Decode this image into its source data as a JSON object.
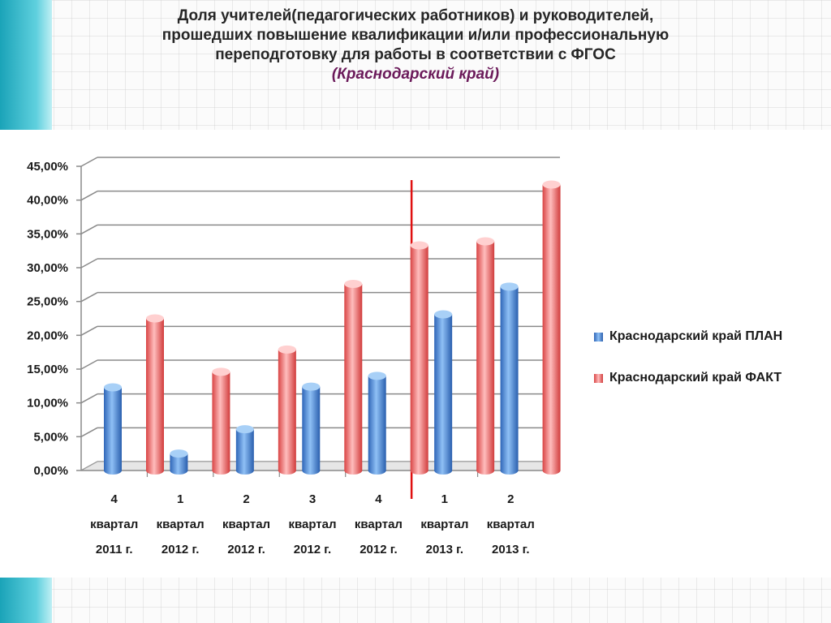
{
  "title": {
    "lines": [
      "Доля учителей(педагогических работников) и руководителей,",
      "прошедших повышение квалификации и/или профессиональную",
      "переподготовку для работы в соответствии с ФГОС"
    ],
    "subtitle": "(Краснодарский край)"
  },
  "chart_data": {
    "type": "bar",
    "title": "",
    "xlabel": "",
    "ylabel": "",
    "ylim": [
      0,
      45
    ],
    "yticks": [
      "0,00%",
      "5,00%",
      "10,00%",
      "15,00%",
      "20,00%",
      "25,00%",
      "30,00%",
      "35,00%",
      "40,00%",
      "45,00%"
    ],
    "categories": [
      [
        "4",
        "квартал",
        "2011 г."
      ],
      [
        "1",
        "квартал",
        "2012 г."
      ],
      [
        "2",
        "квартал",
        "2012 г."
      ],
      [
        "3",
        "квартал",
        "2012 г."
      ],
      [
        "4",
        "квартал",
        "2012 г."
      ],
      [
        "1",
        "квартал",
        "2013 г."
      ],
      [
        "2",
        "квартал",
        "2013 г."
      ]
    ],
    "series": [
      {
        "name": "Краснодарский край ПЛАН",
        "values": [
          12.3,
          2.5,
          6.1,
          12.4,
          14.0,
          23.1,
          27.2
        ],
        "color": "#3d7fd6"
      },
      {
        "name": "Краснодарский край ФАКТ",
        "values": [
          22.5,
          14.6,
          17.9,
          27.6,
          33.3,
          33.9,
          42.3
        ],
        "color": "#e05555"
      }
    ],
    "grid": true,
    "legend": "right",
    "divider_after_category": 4,
    "divider_color": "#e01010"
  }
}
